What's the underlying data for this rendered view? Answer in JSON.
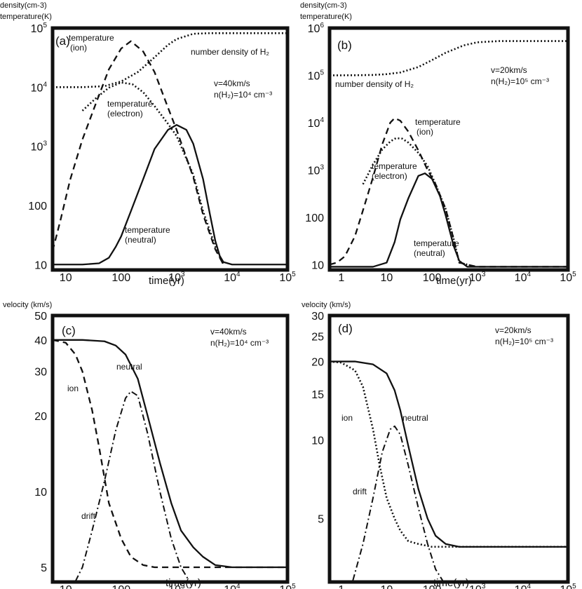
{
  "chart_data": [
    {
      "id": "a",
      "type": "line",
      "panel_label": "(a)",
      "xscale": "log",
      "yscale": "log",
      "xlim": [
        5.8,
        100000
      ],
      "ylim": [
        8.1,
        100000
      ],
      "ylabel_lines": [
        "density(cm-3)",
        "temperature(K)"
      ],
      "xlabel": "time(yr)",
      "xticks": [
        {
          "v": 10,
          "label": "10"
        },
        {
          "v": 100,
          "label": "100"
        },
        {
          "v": 1000,
          "label": "10",
          "sup": "3"
        },
        {
          "v": 10000,
          "label": "10",
          "sup": "4"
        },
        {
          "v": 100000,
          "label": "10",
          "sup": "5"
        }
      ],
      "yticks": [
        {
          "v": 10,
          "label": "10"
        },
        {
          "v": 100,
          "label": "100"
        },
        {
          "v": 1000,
          "label": "10",
          "sup": "3"
        },
        {
          "v": 10000,
          "label": "10",
          "sup": "4"
        },
        {
          "v": 100000,
          "label": "10",
          "sup": "5"
        }
      ],
      "series": [
        {
          "name": "temperature (ion)",
          "style": "dashed",
          "x": [
            5.8,
            8,
            12,
            20,
            35,
            60,
            100,
            150,
            250,
            400,
            700,
            1000,
            2000,
            3000,
            5000,
            7000
          ],
          "y": [
            17,
            55,
            270,
            1300,
            5300,
            20000,
            45000,
            60000,
            40000,
            18000,
            4500,
            1900,
            300,
            70,
            18,
            10
          ]
        },
        {
          "name": "temperature (electron)",
          "style": "dotted",
          "x": [
            20,
            35,
            60,
            100,
            160,
            250,
            400,
            700,
            1000,
            2000,
            3000,
            5000,
            7000
          ],
          "y": [
            4000,
            6500,
            9800,
            12000,
            11200,
            8200,
            4800,
            2400,
            1500,
            330,
            80,
            20,
            10
          ]
        },
        {
          "name": "temperature (neutral)",
          "style": "solid",
          "x": [
            5.8,
            20,
            40,
            60,
            80,
            100,
            150,
            250,
            400,
            700,
            1000,
            1500,
            2000,
            3000,
            4000,
            5000,
            6000,
            7000,
            10000,
            100000
          ],
          "y": [
            10,
            10,
            10.5,
            13,
            20,
            30,
            80,
            280,
            900,
            1900,
            2300,
            1900,
            1100,
            280,
            70,
            25,
            14,
            11,
            10,
            10
          ]
        },
        {
          "name": "number density of H2",
          "style": "dotted",
          "x": [
            5.8,
            20,
            50,
            100,
            200,
            400,
            700,
            1000,
            2000,
            4000,
            10000,
            100000
          ],
          "y": [
            10000,
            10000,
            10400,
            12500,
            18000,
            32000,
            52000,
            65000,
            80000,
            82000,
            82000,
            82000
          ]
        }
      ],
      "annotations": [
        {
          "lines": [
            "temperature",
            "(ion)"
          ]
        },
        {
          "lines": [
            "temperature",
            "(electron)"
          ]
        },
        {
          "lines": [
            "temperature",
            "(neutral)"
          ]
        },
        {
          "lines": [
            "number density of H₂"
          ]
        },
        {
          "lines": [
            "v=40km/s",
            "n(H₂)=10⁴ cm⁻³"
          ]
        }
      ]
    },
    {
      "id": "b",
      "type": "line",
      "panel_label": "(b)",
      "xscale": "log",
      "yscale": "log",
      "xlim": [
        0.55,
        100000
      ],
      "ylim": [
        7.7,
        1000000
      ],
      "ylabel_lines": [
        "density(cm-3)",
        "temperature(K)"
      ],
      "xlabel": "time(yr)",
      "xticks": [
        {
          "v": 1,
          "label": "1"
        },
        {
          "v": 10,
          "label": "10"
        },
        {
          "v": 100,
          "label": "100"
        },
        {
          "v": 1000,
          "label": "10",
          "sup": "3"
        },
        {
          "v": 10000,
          "label": "10",
          "sup": "4"
        },
        {
          "v": 100000,
          "label": "10",
          "sup": "5"
        }
      ],
      "yticks": [
        {
          "v": 10,
          "label": "10"
        },
        {
          "v": 100,
          "label": "100"
        },
        {
          "v": 1000,
          "label": "10",
          "sup": "3"
        },
        {
          "v": 10000,
          "label": "10",
          "sup": "4"
        },
        {
          "v": 100000,
          "label": "10",
          "sup": "5"
        },
        {
          "v": 1000000,
          "label": "10",
          "sup": "6"
        }
      ],
      "series": [
        {
          "name": "temperature (ion)",
          "style": "dashed",
          "x": [
            0.55,
            0.8,
            1.2,
            2,
            3,
            5,
            8,
            12,
            15,
            20,
            30,
            50,
            80,
            120,
            200,
            300,
            400,
            600,
            1000,
            100000
          ],
          "y": [
            10,
            11,
            15,
            40,
            140,
            700,
            3500,
            10000,
            12500,
            11000,
            6500,
            2600,
            1000,
            500,
            150,
            35,
            11,
            10,
            9,
            9
          ]
        },
        {
          "name": "temperature (electron)",
          "style": "dotted",
          "x": [
            3,
            5,
            8,
            12,
            16,
            22,
            30,
            50,
            80,
            120,
            200,
            300,
            400,
            600
          ],
          "y": [
            500,
            1300,
            2700,
            4000,
            4700,
            4600,
            3800,
            2300,
            1200,
            500,
            150,
            35,
            11,
            10
          ]
        },
        {
          "name": "temperature (neutral)",
          "style": "solid",
          "x": [
            0.55,
            5,
            10,
            15,
            20,
            30,
            50,
            70,
            100,
            150,
            200,
            300,
            400,
            600,
            1000,
            100000
          ],
          "y": [
            9,
            9,
            11,
            30,
            90,
            250,
            750,
            850,
            650,
            280,
            110,
            25,
            12,
            9,
            9,
            9
          ]
        },
        {
          "name": "number density of H2",
          "style": "dotted",
          "x": [
            0.55,
            2,
            5,
            10,
            20,
            50,
            100,
            200,
            500,
            1000,
            3000,
            10000,
            100000
          ],
          "y": [
            100000,
            100500,
            102000,
            106000,
            115000,
            150000,
            210000,
            300000,
            430000,
            500000,
            530000,
            530000,
            530000
          ]
        }
      ],
      "annotations": [
        {
          "lines": [
            "number density of H₂"
          ]
        },
        {
          "lines": [
            "v=20km/s",
            "n(H₂)=10⁵ cm⁻³"
          ]
        },
        {
          "lines": [
            "temperature",
            "(ion)"
          ]
        },
        {
          "lines": [
            "temperature",
            "(electron)"
          ]
        },
        {
          "lines": [
            "temperature",
            "(neutral)"
          ]
        }
      ]
    },
    {
      "id": "c",
      "type": "line",
      "panel_label": "(c)",
      "xscale": "log",
      "yscale": "log",
      "xlim": [
        5.8,
        100000
      ],
      "ylim": [
        4.37,
        50
      ],
      "ylabel_lines": [
        "velocity (km/s)"
      ],
      "xlabel": "time(yr)",
      "xticks": [
        {
          "v": 10,
          "label": "10"
        },
        {
          "v": 100,
          "label": "100"
        },
        {
          "v": 1000,
          "label": "10",
          "sup": "3"
        },
        {
          "v": 10000,
          "label": "10",
          "sup": "4"
        },
        {
          "v": 100000,
          "label": "10",
          "sup": "5"
        }
      ],
      "yticks": [
        {
          "v": 5,
          "label": "5"
        },
        {
          "v": 10,
          "label": "10"
        },
        {
          "v": 20,
          "label": "20"
        },
        {
          "v": 30,
          "label": "30"
        },
        {
          "v": 40,
          "label": "40"
        },
        {
          "v": 50,
          "label": "50"
        }
      ],
      "series": [
        {
          "name": "neutral",
          "style": "solid",
          "x": [
            5.8,
            20,
            50,
            80,
            120,
            200,
            300,
            500,
            800,
            1200,
            2000,
            3000,
            5000,
            10000,
            100000
          ],
          "y": [
            40,
            40,
            39.5,
            38,
            35,
            28,
            20,
            13,
            9,
            7,
            6,
            5.5,
            5.1,
            5,
            5
          ]
        },
        {
          "name": "ion",
          "style": "dashed",
          "x": [
            5.8,
            10,
            15,
            20,
            30,
            40,
            60,
            100,
            150,
            250,
            400,
            1000,
            100000
          ],
          "y": [
            40,
            39,
            35,
            30,
            21,
            15,
            9,
            6.5,
            5.5,
            5.1,
            5,
            5,
            5
          ]
        },
        {
          "name": "drift",
          "style": "dashdot",
          "x": [
            15,
            20,
            30,
            50,
            80,
            120,
            150,
            200,
            300,
            500,
            800,
            1200,
            1700
          ],
          "y": [
            4.4,
            5,
            7,
            11,
            17.5,
            23.5,
            25,
            24,
            17,
            10,
            6.5,
            5,
            4.4
          ]
        }
      ],
      "annotations": [
        {
          "lines": [
            "neutral"
          ]
        },
        {
          "lines": [
            "ion"
          ]
        },
        {
          "lines": [
            "drift"
          ]
        },
        {
          "lines": [
            "v=40km/s",
            "n(H₂)=10⁴ cm⁻³"
          ]
        }
      ]
    },
    {
      "id": "d",
      "type": "line",
      "panel_label": "(d)",
      "xscale": "log",
      "yscale": "log",
      "xlim": [
        0.55,
        100000
      ],
      "ylim": [
        2.86,
        30
      ],
      "ylabel_lines": [
        "velocity (km/s)"
      ],
      "xlabel": "time(yr)",
      "xticks": [
        {
          "v": 1,
          "label": "1"
        },
        {
          "v": 10,
          "label": "10"
        },
        {
          "v": 100,
          "label": "100"
        },
        {
          "v": 1000,
          "label": "10",
          "sup": "3"
        },
        {
          "v": 10000,
          "label": "10",
          "sup": "4"
        },
        {
          "v": 100000,
          "label": "10",
          "sup": "5"
        }
      ],
      "yticks": [
        {
          "v": 5,
          "label": "5"
        },
        {
          "v": 10,
          "label": "10"
        },
        {
          "v": 15,
          "label": "15"
        },
        {
          "v": 20,
          "label": "20"
        },
        {
          "v": 25,
          "label": "25"
        },
        {
          "v": 30,
          "label": "30"
        }
      ],
      "series": [
        {
          "name": "neutral",
          "style": "solid",
          "x": [
            0.55,
            2,
            5,
            10,
            15,
            20,
            30,
            50,
            80,
            120,
            200,
            400,
            1000,
            100000
          ],
          "y": [
            20,
            20,
            19.5,
            18,
            15.5,
            13,
            9.5,
            6.5,
            5,
            4.3,
            4,
            3.9,
            3.9,
            3.9
          ]
        },
        {
          "name": "ion",
          "style": "dotted",
          "x": [
            0.55,
            1,
            2,
            3,
            5,
            7,
            10,
            15,
            20,
            30,
            50,
            100,
            1000,
            100000
          ],
          "y": [
            20,
            19.8,
            18.5,
            16,
            11,
            8,
            6,
            5,
            4.5,
            4.1,
            4,
            3.9,
            3.9,
            3.9
          ]
        },
        {
          "name": "drift",
          "style": "dashdot",
          "x": [
            1.8,
            3,
            5,
            8,
            12,
            15,
            20,
            30,
            50,
            80,
            120,
            180
          ],
          "y": [
            2.9,
            4,
            6,
            9,
            11,
            11.3,
            10.5,
            8,
            5.5,
            4,
            3.2,
            2.86
          ]
        }
      ],
      "annotations": [
        {
          "lines": [
            "neutral"
          ]
        },
        {
          "lines": [
            "ion"
          ]
        },
        {
          "lines": [
            "drift"
          ]
        },
        {
          "lines": [
            "v=20km/s",
            "n(H₂)=10⁵ cm⁻³"
          ]
        }
      ]
    }
  ]
}
